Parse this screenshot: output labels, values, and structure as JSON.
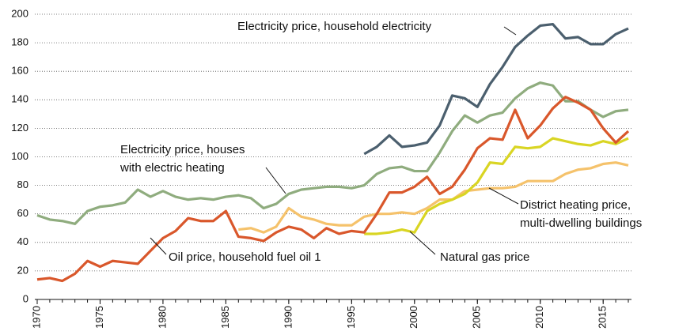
{
  "chart_data": {
    "type": "line",
    "xlim": [
      1970,
      2017
    ],
    "xticks": [
      1970,
      1975,
      1980,
      1985,
      1990,
      1995,
      2000,
      2005,
      2010,
      2015
    ],
    "ylim": [
      0,
      200
    ],
    "yticks": [
      0,
      20,
      40,
      60,
      80,
      100,
      120,
      140,
      160,
      180,
      200
    ],
    "grid": true,
    "series": [
      {
        "color": "#4b5f6e",
        "x": [
          1996,
          1997,
          1998,
          1999,
          2000,
          2001,
          2002,
          2003,
          2004,
          2005,
          2006,
          2007,
          2008,
          2009,
          2010,
          2011,
          2012,
          2013,
          2014,
          2015,
          2016,
          2017
        ],
        "values": [
          102,
          107,
          115,
          107,
          108,
          110,
          122,
          143,
          141,
          135,
          151,
          163,
          177,
          185,
          192,
          193,
          183,
          184,
          179,
          179,
          186,
          190
        ]
      },
      {
        "color": "#8fac7e",
        "x": [
          1970,
          1971,
          1972,
          1973,
          1974,
          1975,
          1976,
          1977,
          1978,
          1979,
          1980,
          1981,
          1982,
          1983,
          1984,
          1985,
          1986,
          1987,
          1988,
          1989,
          1990,
          1991,
          1992,
          1993,
          1994,
          1995,
          1996,
          1997,
          1998,
          1999,
          2000,
          2001,
          2002,
          2003,
          2004,
          2005,
          2006,
          2007,
          2008,
          2009,
          2010,
          2011,
          2012,
          2013,
          2014,
          2015,
          2016,
          2017
        ],
        "values": [
          59,
          56,
          55,
          53,
          62,
          65,
          66,
          68,
          77,
          72,
          76,
          72,
          70,
          71,
          70,
          72,
          73,
          71,
          64,
          67,
          74,
          77,
          78,
          79,
          79,
          78,
          80,
          88,
          92,
          93,
          90,
          90,
          103,
          118,
          129,
          124,
          129,
          131,
          141,
          148,
          152,
          150,
          139,
          139,
          133,
          128,
          132,
          133
        ]
      },
      {
        "color": "#f5c26b",
        "x": [
          1986,
          1987,
          1988,
          1989,
          1990,
          1991,
          1992,
          1993,
          1994,
          1995,
          1996,
          1997,
          1998,
          1999,
          2000,
          2001,
          2002,
          2003,
          2004,
          2005,
          2006,
          2007,
          2008,
          2009,
          2010,
          2011,
          2012,
          2013,
          2014,
          2015,
          2016,
          2017
        ],
        "values": [
          49,
          50,
          47,
          51,
          64,
          58,
          56,
          53,
          52,
          52,
          58,
          60,
          60,
          61,
          60,
          64,
          70,
          70,
          76,
          77,
          78,
          78,
          79,
          83,
          83,
          83,
          88,
          91,
          92,
          95,
          96,
          94
        ]
      },
      {
        "color": "#d9d523",
        "x": [
          1996,
          1997,
          1998,
          1999,
          2000,
          2001,
          2002,
          2003,
          2004,
          2005,
          2006,
          2007,
          2008,
          2009,
          2010,
          2011,
          2012,
          2013,
          2014,
          2015,
          2016,
          2017
        ],
        "values": [
          46,
          46,
          47,
          49,
          47,
          62,
          67,
          70,
          74,
          82,
          96,
          95,
          107,
          106,
          107,
          113,
          111,
          109,
          108,
          111,
          109,
          113
        ]
      },
      {
        "color": "#d9572b",
        "x": [
          1970,
          1971,
          1972,
          1973,
          1974,
          1975,
          1976,
          1977,
          1978,
          1979,
          1980,
          1981,
          1982,
          1983,
          1984,
          1985,
          1986,
          1987,
          1988,
          1989,
          1990,
          1991,
          1992,
          1993,
          1994,
          1995,
          1996,
          1997,
          1998,
          1999,
          2000,
          2001,
          2002,
          2003,
          2004,
          2005,
          2006,
          2007,
          2008,
          2009,
          2010,
          2011,
          2012,
          2013,
          2014,
          2015,
          2016,
          2017
        ],
        "values": [
          14,
          15,
          13,
          18,
          27,
          23,
          27,
          26,
          25,
          34,
          43,
          48,
          57,
          55,
          55,
          62,
          44,
          43,
          41,
          47,
          51,
          49,
          43,
          50,
          46,
          48,
          47,
          60,
          75,
          75,
          79,
          86,
          74,
          79,
          91,
          106,
          113,
          112,
          133,
          113,
          122,
          134,
          142,
          138,
          133,
          120,
          110,
          118
        ]
      }
    ],
    "annotations": [
      [
        "Electricity price, household electricity"
      ],
      [
        "Electricity price, houses",
        "with electric heating"
      ],
      [
        "District heating price,",
        "multi-dwelling buildings"
      ],
      [
        "Oil price, household fuel oil 1"
      ],
      [
        "Natural gas price"
      ]
    ]
  }
}
